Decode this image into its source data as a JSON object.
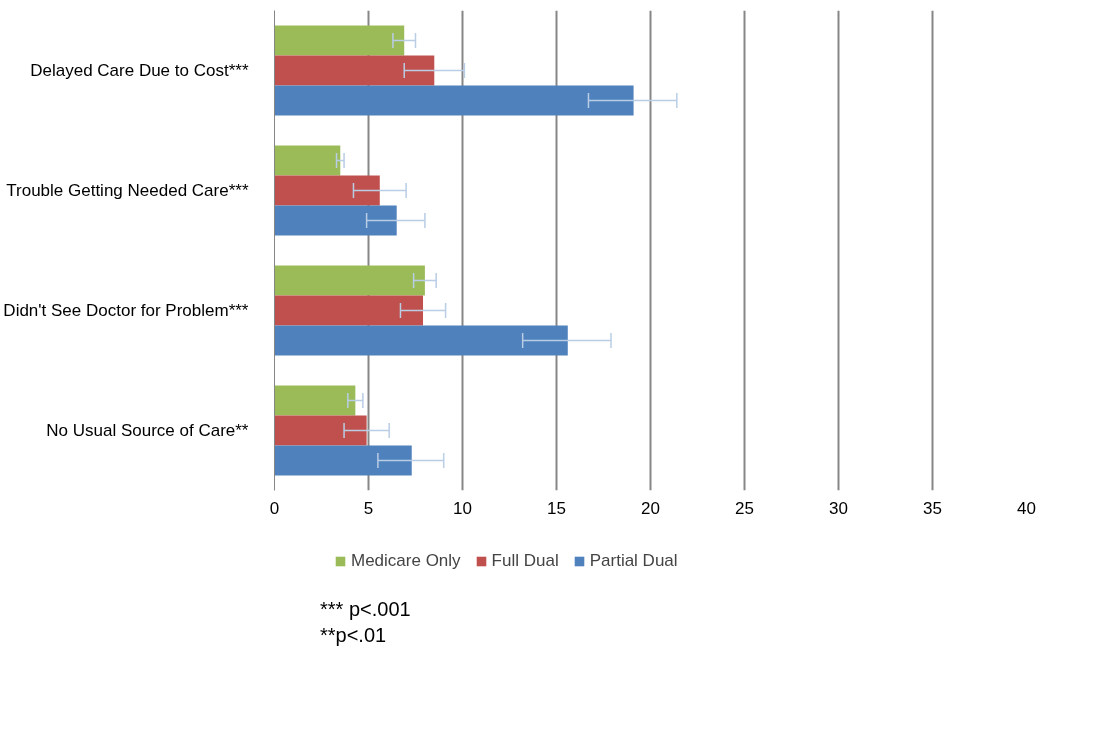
{
  "chart_data": {
    "type": "bar",
    "orientation": "horizontal",
    "categories": [
      "Delayed Care Due to Cost***",
      "Trouble Getting Needed Care***",
      "Didn't See Doctor for Problem***",
      "No Usual Source of Care**"
    ],
    "series": [
      {
        "name": "Medicare Only",
        "color": "#9bbb59",
        "values": [
          6.9,
          3.5,
          8.0,
          4.3
        ],
        "errors": [
          [
            6.3,
            7.5
          ],
          [
            3.3,
            3.7
          ],
          [
            7.4,
            8.6
          ],
          [
            3.9,
            4.7
          ]
        ]
      },
      {
        "name": "Full Dual",
        "color": "#c0504d",
        "values": [
          8.5,
          5.6,
          7.9,
          4.9
        ],
        "errors": [
          [
            6.9,
            10.1
          ],
          [
            4.2,
            7.0
          ],
          [
            6.7,
            9.1
          ],
          [
            3.7,
            6.1
          ]
        ]
      },
      {
        "name": "Partial Dual",
        "color": "#4f81bd",
        "values": [
          19.1,
          6.5,
          15.6,
          7.3
        ],
        "errors": [
          [
            16.7,
            21.4
          ],
          [
            4.9,
            8.0
          ],
          [
            13.2,
            17.9
          ],
          [
            5.5,
            9.0
          ]
        ]
      }
    ],
    "xlim": [
      0,
      40
    ],
    "xticks": [
      0,
      5,
      10,
      15,
      20,
      25,
      30,
      35,
      40
    ],
    "grid": "x",
    "legend": "bottom",
    "annotations": [
      "*** p<.001",
      "**p<.01"
    ]
  }
}
